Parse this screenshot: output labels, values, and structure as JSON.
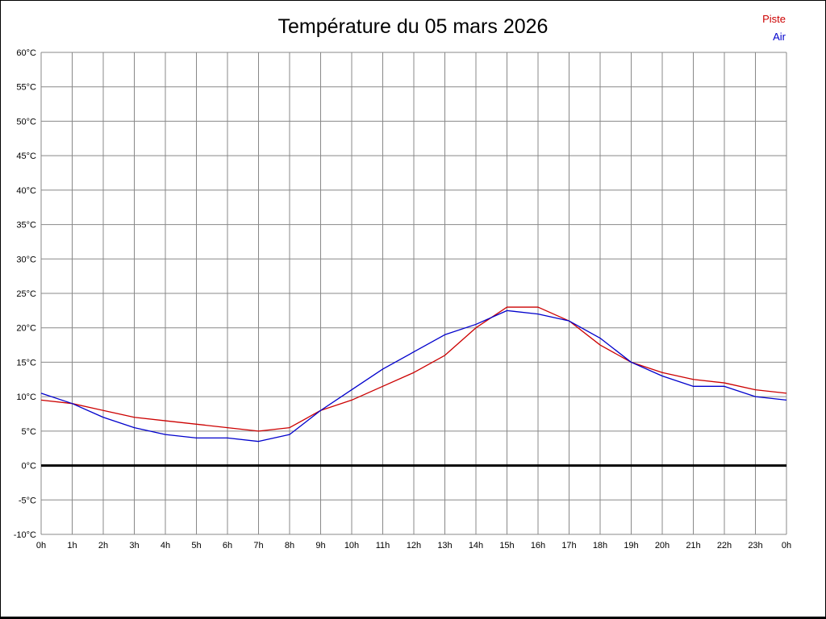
{
  "title": "Température du 05 mars 2026",
  "legend": {
    "piste_label": "Piste",
    "air_label": "Air"
  },
  "colors": {
    "piste": "#cc0000",
    "air": "#0000cc",
    "grid": "#888888",
    "zero_line": "#000000",
    "text": "#000000"
  },
  "chart_data": {
    "type": "line",
    "title": "Température du 05 mars 2026",
    "xlabel": "",
    "ylabel": "",
    "xlim": [
      0,
      24
    ],
    "ylim": [
      -10,
      60
    ],
    "y_tick_step": 5,
    "grid": true,
    "legend_position": "top-right",
    "x_tick_labels": [
      "0h",
      "1h",
      "2h",
      "3h",
      "4h",
      "5h",
      "6h",
      "7h",
      "8h",
      "9h",
      "10h",
      "11h",
      "12h",
      "13h",
      "14h",
      "15h",
      "16h",
      "17h",
      "18h",
      "19h",
      "20h",
      "21h",
      "22h",
      "23h",
      "0h"
    ],
    "y_tick_labels": [
      "60°C",
      "55°C",
      "50°C",
      "45°C",
      "40°C",
      "35°C",
      "30°C",
      "25°C",
      "20°C",
      "15°C",
      "10°C",
      "5°C",
      "0°C",
      "-5°C",
      "-10°C"
    ],
    "x_hours": [
      0,
      1,
      2,
      3,
      4,
      5,
      6,
      7,
      8,
      9,
      10,
      11,
      12,
      13,
      14,
      15,
      16,
      17,
      18,
      19,
      20,
      21,
      22,
      23,
      24
    ],
    "series": [
      {
        "name": "Piste",
        "color": "#cc0000",
        "values": [
          9.5,
          9.0,
          8.0,
          7.0,
          6.5,
          6.0,
          5.5,
          5.0,
          5.5,
          8.0,
          9.5,
          11.5,
          13.5,
          16.0,
          20.0,
          23.0,
          23.0,
          21.0,
          17.5,
          15.0,
          13.5,
          12.5,
          12.0,
          11.0,
          10.5
        ]
      },
      {
        "name": "Air",
        "color": "#0000cc",
        "values": [
          10.5,
          9.0,
          7.0,
          5.5,
          4.5,
          4.0,
          4.0,
          3.5,
          4.5,
          8.0,
          11.0,
          14.0,
          16.5,
          19.0,
          20.5,
          22.5,
          22.0,
          21.0,
          18.5,
          15.0,
          13.0,
          11.5,
          11.5,
          10.0,
          9.5
        ]
      }
    ]
  }
}
